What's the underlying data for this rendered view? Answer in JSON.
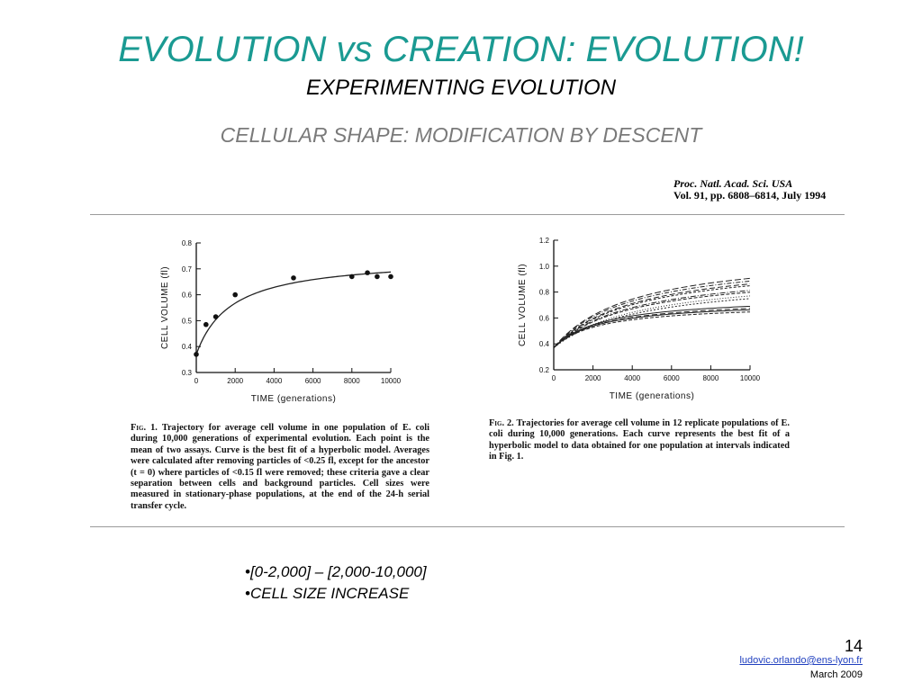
{
  "slide": {
    "title": "EVOLUTION vs CREATION: EVOLUTION!",
    "subtitle": "EXPERIMENTING EVOLUTION",
    "section": "CELLULAR SHAPE: MODIFICATION BY DESCENT",
    "citation_line1": "Proc. Natl. Acad. Sci. USA",
    "citation_line2": "Vol. 91, pp. 6808–6814, July 1994",
    "bullets": [
      "•[0-2,000] – [2,000-10,000]",
      "•CELL SIZE INCREASE"
    ],
    "page_number": "14",
    "email": "ludovic.orlando@ens-lyon.fr",
    "date": "March 2009",
    "colors": {
      "title": "#1a9a92",
      "section": "#7a7a7a",
      "link": "#1f3fbf"
    }
  },
  "captions": {
    "fig1_label": "Fig. 1.",
    "fig1_text": "Trajectory for average cell volume in one population of E. coli during 10,000 generations of experimental evolution. Each point is the mean of two assays. Curve is the best fit of a hyperbolic model. Averages were calculated after removing particles of <0.25 fl, except for the ancestor (t = 0) where particles of <0.15 fl were removed; these criteria gave a clear separation between cells and background particles. Cell sizes were measured in stationary-phase populations, at the end of the 24-h serial transfer cycle.",
    "fig2_label": "Fig. 2.",
    "fig2_text": "Trajectories for average cell volume in 12 replicate populations of E. coli during 10,000 generations. Each curve represents the best fit of a hyperbolic model to data obtained for one population at intervals indicated in Fig. 1."
  },
  "chart_data": [
    {
      "type": "scatter",
      "title": "",
      "xlabel": "TIME (generations)",
      "ylabel": "CELL VOLUME (fl)",
      "xlim": [
        0,
        10000
      ],
      "ylim": [
        0.3,
        0.8
      ],
      "xticks": [
        "0",
        "2000",
        "4000",
        "6000",
        "8000",
        "10000"
      ],
      "yticks": [
        "0.3",
        "0.4",
        "0.5",
        "0.6",
        "0.7",
        "0.8"
      ],
      "points": [
        {
          "x": 0,
          "y": 0.37
        },
        {
          "x": 500,
          "y": 0.485
        },
        {
          "x": 1000,
          "y": 0.515
        },
        {
          "x": 2000,
          "y": 0.6
        },
        {
          "x": 5000,
          "y": 0.665
        },
        {
          "x": 8000,
          "y": 0.67
        },
        {
          "x": 8800,
          "y": 0.685
        },
        {
          "x": 9300,
          "y": 0.67
        },
        {
          "x": 10000,
          "y": 0.67
        }
      ],
      "fit": {
        "model": "hyperbolic",
        "y0": 0.37,
        "a": 0.375,
        "b": 1800
      }
    },
    {
      "type": "line",
      "title": "",
      "xlabel": "TIME (generations)",
      "ylabel": "CELL VOLUME (fl)",
      "xlim": [
        0,
        10000
      ],
      "ylim": [
        0.2,
        1.2
      ],
      "xticks": [
        "0",
        "2000",
        "4000",
        "6000",
        "8000",
        "10000"
      ],
      "yticks": [
        "0.2",
        "0.4",
        "0.6",
        "0.8",
        "1.0",
        "1.2"
      ],
      "model": "hyperbolic",
      "series": [
        {
          "y0": 0.37,
          "a": 0.75,
          "b": 4000,
          "dash": "7 3"
        },
        {
          "y0": 0.37,
          "a": 0.72,
          "b": 4000,
          "dash": "5 2 1 2"
        },
        {
          "y0": 0.37,
          "a": 0.7,
          "b": 4200,
          "dash": "6 3"
        },
        {
          "y0": 0.37,
          "a": 0.68,
          "b": 4200,
          "dash": "3 2"
        },
        {
          "y0": 0.37,
          "a": 0.62,
          "b": 4000,
          "dash": "6 2 1 2"
        },
        {
          "y0": 0.37,
          "a": 0.6,
          "b": 4000,
          "dash": "4 2"
        },
        {
          "y0": 0.37,
          "a": 0.58,
          "b": 4500,
          "dash": "1 2"
        },
        {
          "y0": 0.37,
          "a": 0.55,
          "b": 4500,
          "dash": "2 2"
        },
        {
          "y0": 0.37,
          "a": 0.4,
          "b": 2500,
          "dash": ""
        },
        {
          "y0": 0.37,
          "a": 0.38,
          "b": 2500,
          "dash": "6 3"
        },
        {
          "y0": 0.37,
          "a": 0.36,
          "b": 2300,
          "dash": ""
        },
        {
          "y0": 0.37,
          "a": 0.34,
          "b": 2300,
          "dash": "4 2"
        }
      ]
    }
  ]
}
